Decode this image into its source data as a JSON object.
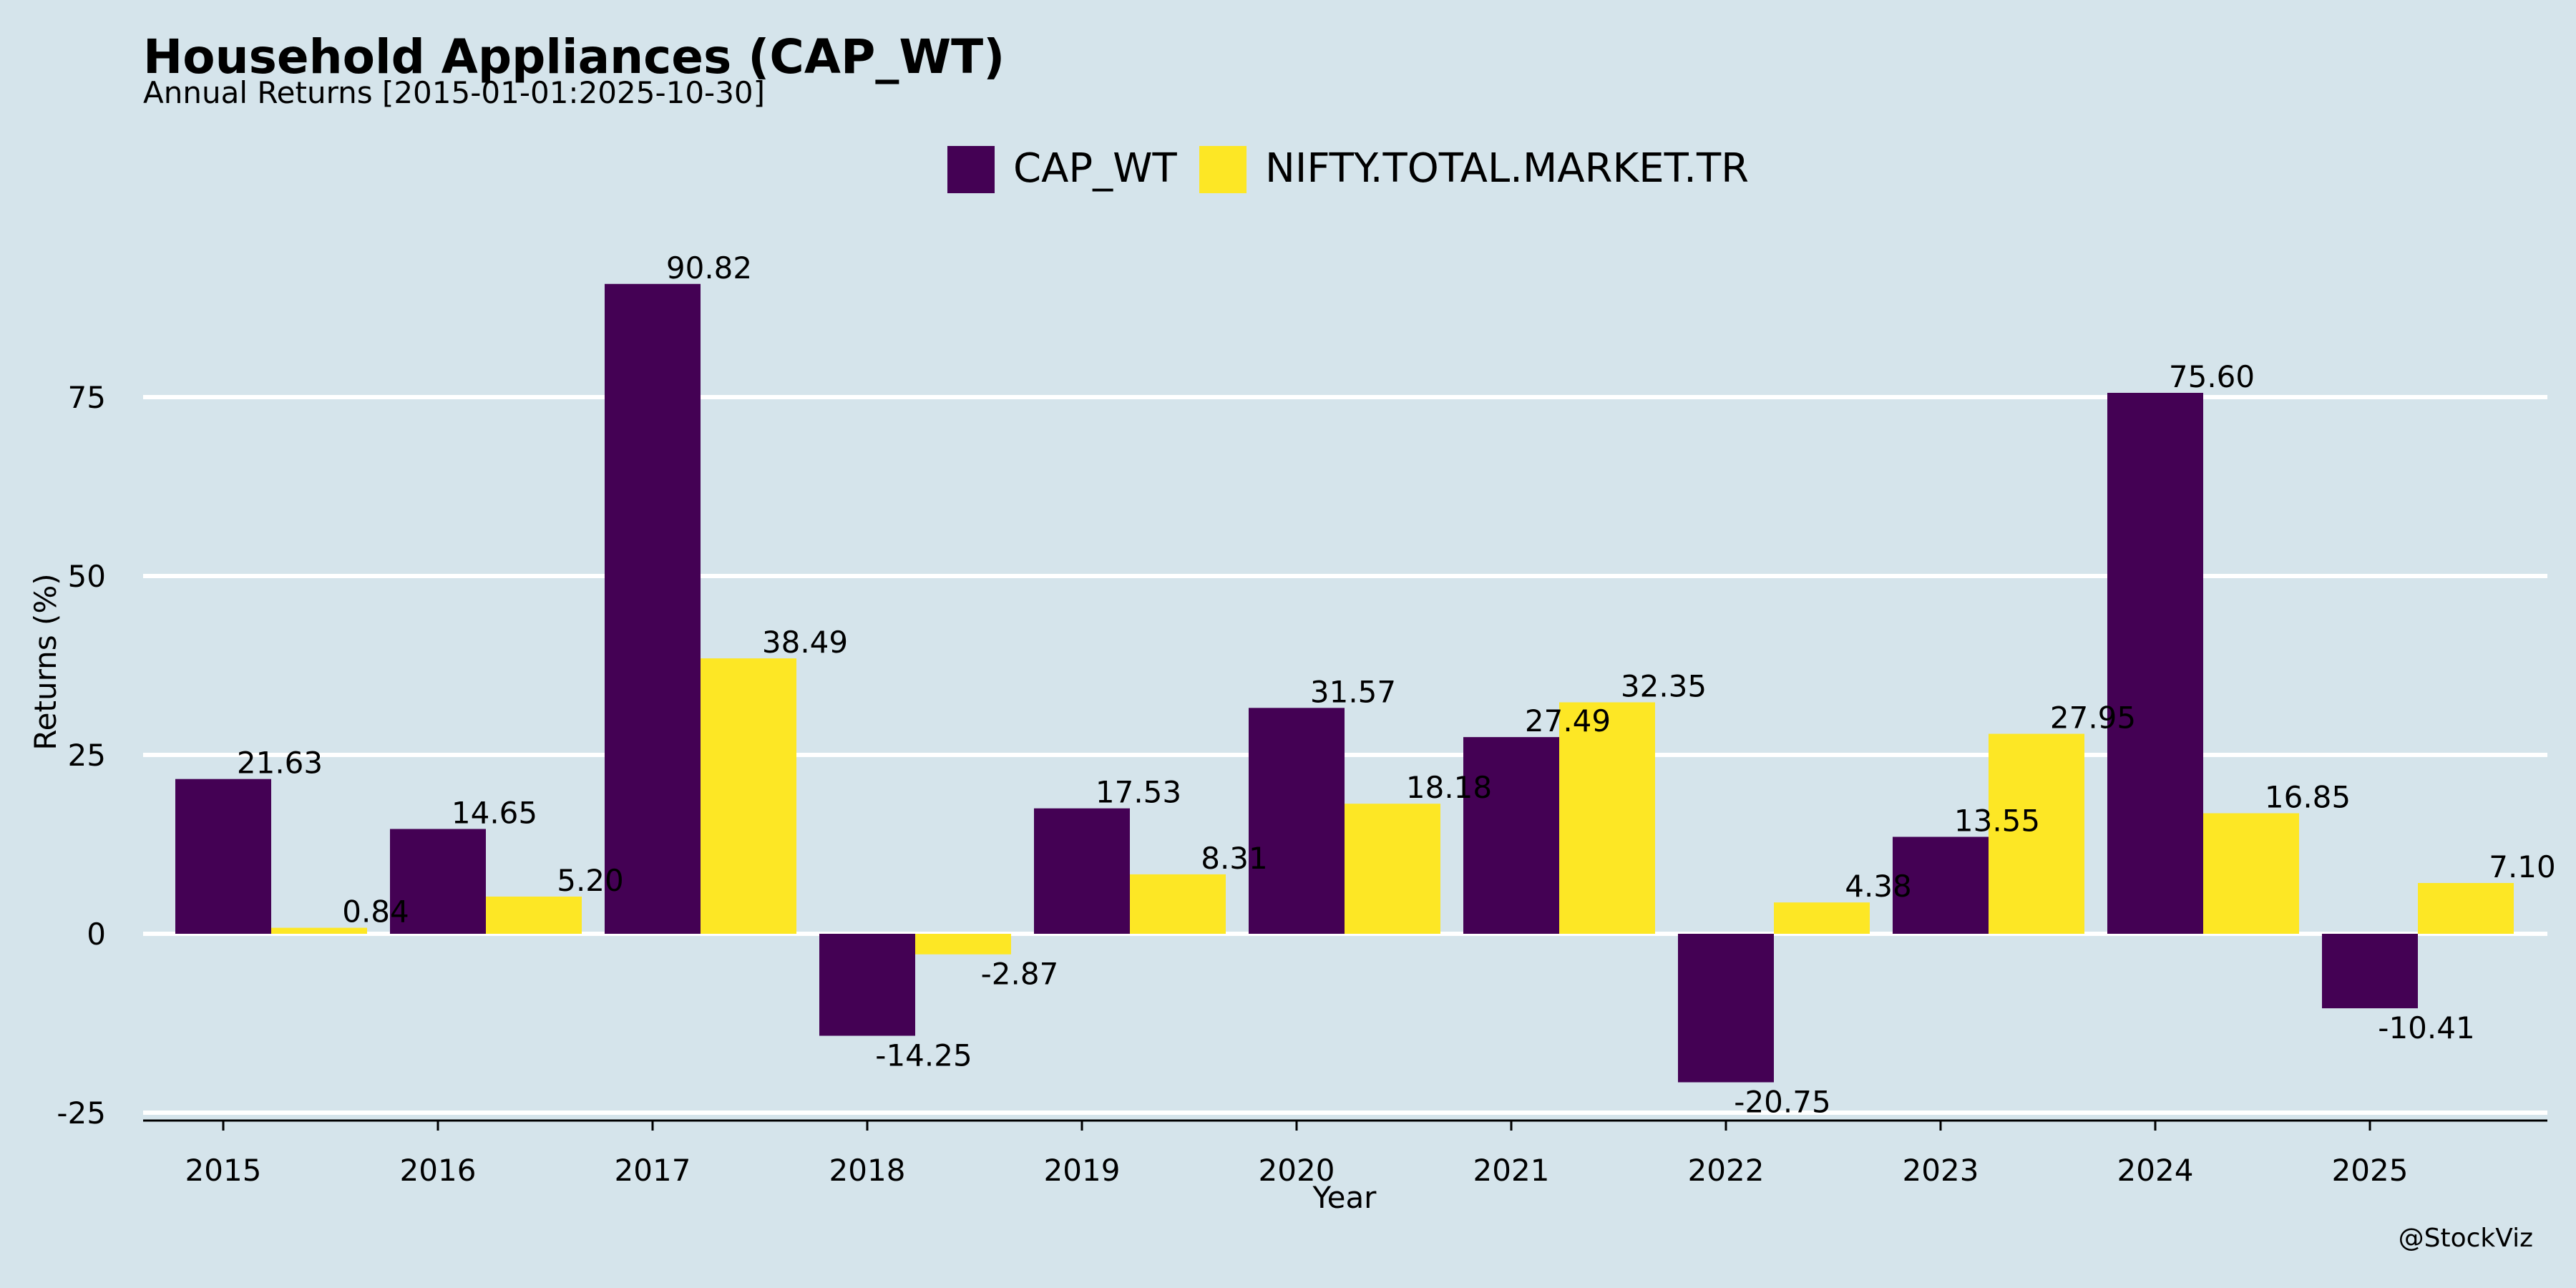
{
  "chart_data": {
    "type": "bar",
    "title": "Household Appliances (CAP_WT)",
    "subtitle": "Annual Returns [2015-01-01:2025-10-30]",
    "xlabel": "Year",
    "ylabel": "Returns (%)",
    "categories": [
      "2015",
      "2016",
      "2017",
      "2018",
      "2019",
      "2020",
      "2021",
      "2022",
      "2023",
      "2024",
      "2025"
    ],
    "series": [
      {
        "name": "CAP_WT",
        "color": "#440154",
        "values": [
          21.63,
          14.65,
          90.82,
          -14.25,
          17.53,
          31.57,
          27.49,
          -20.75,
          13.55,
          75.6,
          -10.41
        ],
        "labels": [
          "21.63",
          "14.65",
          "90.82",
          "-14.25",
          "17.53",
          "31.57",
          "27.49",
          "-20.75",
          "13.55",
          "75.60",
          "-10.41"
        ]
      },
      {
        "name": "NIFTY.TOTAL.MARKET.TR",
        "color": "#fde725",
        "values": [
          0.84,
          5.2,
          38.49,
          -2.87,
          8.31,
          18.18,
          32.35,
          4.38,
          27.95,
          16.85,
          7.1
        ],
        "labels": [
          "0.84",
          "5.20",
          "38.49",
          "-2.87",
          "8.31",
          "18.18",
          "32.35",
          "4.38",
          "27.95",
          "16.85",
          "7.10"
        ]
      }
    ],
    "yticks": [
      -25,
      0,
      25,
      50,
      75
    ],
    "ylim": [
      -26,
      98
    ],
    "grid": true,
    "legend_position": "top-center"
  },
  "watermark": "@StockViz",
  "colors": {
    "background": "#d5e4eb",
    "grid": "#ffffff"
  }
}
